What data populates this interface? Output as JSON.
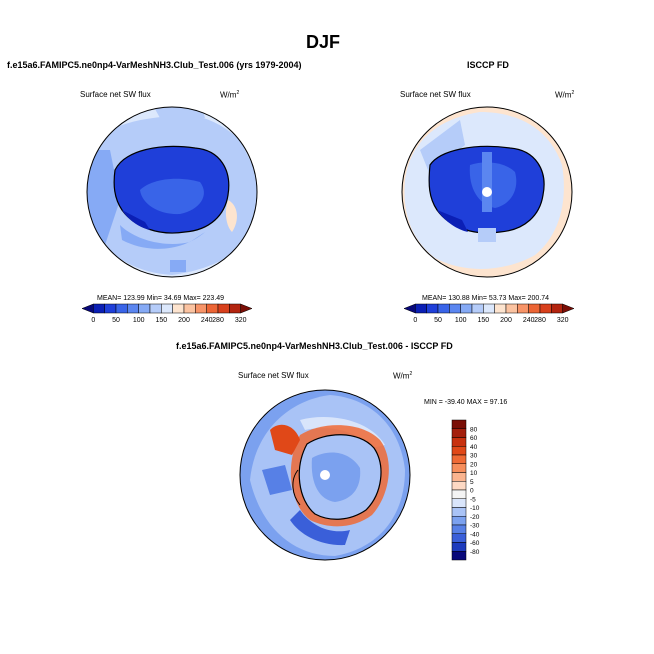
{
  "page": {
    "season": "DJF",
    "model_label": "f.e15a6.FAMIPC5.ne0np4-VarMeshNH3.Club_Test.006 (yrs 1979-2004)",
    "obs_label": "ISCCP FD",
    "diff_label": "f.e15a6.FAMIPC5.ne0np4-VarMeshNH3.Club_Test.006 - ISCCP FD"
  },
  "chart_data": [
    {
      "type": "heatmap",
      "projection": "south-polar stereographic",
      "variable": "Surface net SW flux",
      "units": "W/m",
      "units_sup": "2",
      "stats": {
        "mean": 123.99,
        "min": 34.69,
        "max": 223.49,
        "text": "MEAN= 123.99  Min=  34.69  Max= 223.49"
      },
      "colorbar": {
        "orientation": "horizontal",
        "levels": [
          0,
          50,
          100,
          150,
          200,
          240,
          280,
          320
        ],
        "colors": [
          "#08087a",
          "#0b1fb5",
          "#1f3fd9",
          "#3964e8",
          "#5b86f0",
          "#86aaf5",
          "#b5ccf9",
          "#dce8fc",
          "#fde4cf",
          "#fbc3a1",
          "#f79468",
          "#ec6535",
          "#d8401c",
          "#b3240f",
          "#7a0e06"
        ]
      }
    },
    {
      "type": "heatmap",
      "projection": "south-polar stereographic",
      "variable": "Surface net SW flux",
      "units": "W/m",
      "units_sup": "2",
      "stats": {
        "mean": 130.88,
        "min": 53.73,
        "max": 200.74,
        "text": "MEAN= 130.88  Min=  53.73  Max= 200.74"
      },
      "colorbar": {
        "orientation": "horizontal",
        "levels": [
          0,
          50,
          100,
          150,
          200,
          240,
          280,
          320
        ],
        "colors": [
          "#08087a",
          "#0b1fb5",
          "#1f3fd9",
          "#3964e8",
          "#5b86f0",
          "#86aaf5",
          "#b5ccf9",
          "#dce8fc",
          "#fde4cf",
          "#fbc3a1",
          "#f79468",
          "#ec6535",
          "#d8401c",
          "#b3240f",
          "#7a0e06"
        ]
      }
    },
    {
      "type": "heatmap",
      "projection": "south-polar stereographic",
      "variable": "Surface net SW flux",
      "units": "W/m",
      "units_sup": "2",
      "stats": {
        "min": -39.4,
        "max": 97.16,
        "text": "MIN = -39.40  MAX =  97.16"
      },
      "colorbar": {
        "orientation": "vertical",
        "levels": [
          80,
          60,
          40,
          30,
          20,
          10,
          5,
          0,
          -5,
          -10,
          -20,
          -30,
          -40,
          -60,
          -80
        ],
        "colors": [
          "#7a0e06",
          "#a41f0d",
          "#c8310f",
          "#e04818",
          "#ef6a35",
          "#f68e5c",
          "#fab48f",
          "#fdd9c4",
          "#f4f4f4",
          "#d9e5fb",
          "#a9c3f6",
          "#7ba1ef",
          "#5780e6",
          "#3a5fd9",
          "#1d3bbd",
          "#08087a"
        ]
      }
    }
  ]
}
